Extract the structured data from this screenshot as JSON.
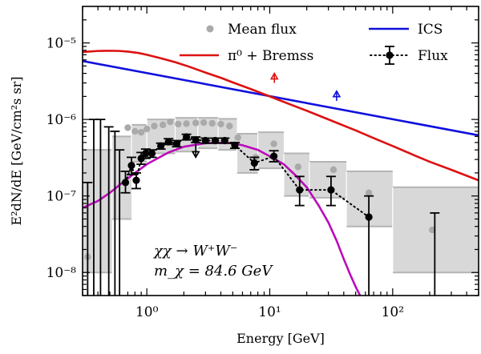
{
  "chart_data": {
    "type": "line",
    "xlabel": "Energy [GeV]",
    "ylabel": "E²dN/dE [GeV/cm²s sr]",
    "xscale": "log",
    "yscale": "log",
    "xlim": [
      0.3,
      500
    ],
    "ylim": [
      5e-09,
      3e-05
    ],
    "x_tick_labels": [
      "10⁰",
      "10¹",
      "10²"
    ],
    "x_tick_values": [
      1,
      10,
      100
    ],
    "y_tick_labels": [
      "10⁻⁸",
      "10⁻⁷",
      "10⁻⁶",
      "10⁻⁵"
    ],
    "y_tick_values": [
      1e-08,
      1e-07,
      1e-06,
      1e-05
    ],
    "legend_position": "top",
    "legend": [
      {
        "label": "Mean flux",
        "style": "gray-dot"
      },
      {
        "label": "ICS",
        "style": "blue-line"
      },
      {
        "label": "π⁰ + Bremss",
        "style": "red-line"
      },
      {
        "label": "Flux",
        "style": "black-errorbar-dotted"
      }
    ],
    "annotations": [
      "χχ → W⁺W⁻",
      "m_χ = 84.6 GeV"
    ],
    "colors": {
      "ics": "#1010dd",
      "pion": "#dd1111",
      "dm": "#bb0bbb",
      "mean": "#aaaaaa",
      "flux": "#000000",
      "band_fill": "#d8d8d8",
      "band_edge": "#b4b4b4"
    },
    "series": [
      {
        "name": "ICS",
        "x": [
          0.3,
          500
        ],
        "y": [
          5.8e-06,
          6.2e-07
        ]
      },
      {
        "name": "π⁰ + Bremss",
        "x": [
          0.3,
          0.4,
          0.5,
          0.6,
          0.7,
          0.85,
          1,
          1.3,
          1.7,
          2.2,
          3,
          4,
          5,
          7,
          10,
          15,
          20,
          30,
          50,
          70,
          100,
          150,
          200,
          300,
          500
        ],
        "y": [
          7.6e-06,
          7.85e-06,
          7.9e-06,
          7.85e-06,
          7.7e-06,
          7.4e-06,
          7e-06,
          6.3e-06,
          5.6e-06,
          4.9e-06,
          4.1e-06,
          3.5e-06,
          3.05e-06,
          2.5e-06,
          2e-06,
          1.55e-06,
          1.3e-06,
          1e-06,
          7.2e-07,
          5.7e-07,
          4.5e-07,
          3.4e-07,
          2.8e-07,
          2.2e-07,
          1.6e-07
        ]
      },
      {
        "name": "χχ → W⁺W⁻",
        "x": [
          0.3,
          0.4,
          0.5,
          0.7,
          1,
          1.5,
          2,
          3,
          4,
          5,
          6,
          8,
          10,
          13,
          16,
          20,
          25,
          30,
          35,
          40,
          45,
          50,
          55
        ],
        "y": [
          7e-08,
          8.6e-08,
          1.1e-07,
          1.7e-07,
          2.6e-07,
          3.7e-07,
          4.4e-07,
          4.9e-07,
          4.95e-07,
          4.9e-07,
          4.6e-07,
          4e-07,
          3.3e-07,
          2.6e-07,
          1.9e-07,
          1.3e-07,
          7.5e-08,
          4.5e-08,
          2.6e-08,
          1.5e-08,
          9.5e-09,
          6.5e-09,
          4.8e-09
        ]
      }
    ],
    "flux_points": [
      {
        "x": 0.67,
        "y": 1.5e-07,
        "lo": 1.1e-07,
        "hi": 2.1e-07
      },
      {
        "x": 0.75,
        "y": 2.5e-07,
        "lo": 1.9e-07,
        "hi": 3.2e-07
      },
      {
        "x": 0.82,
        "y": 1.6e-07,
        "lo": 1.25e-07,
        "hi": 2e-07
      },
      {
        "x": 0.9,
        "y": 3.1e-07,
        "lo": 2.6e-07,
        "hi": 3.7e-07
      },
      {
        "x": 0.98,
        "y": 3.6e-07,
        "lo": 3.1e-07,
        "hi": 4.1e-07
      },
      {
        "x": 1.1,
        "y": 3.6e-07,
        "lo": 3.2e-07,
        "hi": 4e-07
      },
      {
        "x": 1.3,
        "y": 4.5e-07,
        "lo": 4.1e-07,
        "hi": 4.9e-07
      },
      {
        "x": 1.5,
        "y": 5.1e-07,
        "lo": 4.7e-07,
        "hi": 5.6e-07
      },
      {
        "x": 1.75,
        "y": 4.8e-07,
        "lo": 4.4e-07,
        "hi": 5.3e-07
      },
      {
        "x": 2.1,
        "y": 5.9e-07,
        "lo": 5.4e-07,
        "hi": 6.4e-07
      },
      {
        "x": 2.5,
        "y": 5.4e-07,
        "lo": 5e-07,
        "hi": 5.9e-07
      },
      {
        "x": 3.0,
        "y": 5.3e-07,
        "lo": 4.9e-07,
        "hi": 5.7e-07
      },
      {
        "x": 3.6,
        "y": 5.3e-07,
        "lo": 4.9e-07,
        "hi": 5.7e-07
      },
      {
        "x": 4.3,
        "y": 5.3e-07,
        "lo": 4.9e-07,
        "hi": 5.7e-07
      },
      {
        "x": 5.2,
        "y": 4.6e-07,
        "lo": 4.2e-07,
        "hi": 5e-07
      },
      {
        "x": 7.5,
        "y": 2.7e-07,
        "lo": 2.2e-07,
        "hi": 3.2e-07
      },
      {
        "x": 10.8,
        "y": 3.3e-07,
        "lo": 2.8e-07,
        "hi": 3.9e-07
      },
      {
        "x": 17.5,
        "y": 1.2e-07,
        "lo": 7.5e-08,
        "hi": 1.8e-07
      },
      {
        "x": 31.5,
        "y": 1.2e-07,
        "lo": 7.5e-08,
        "hi": 1.8e-07
      },
      {
        "x": 64.0,
        "y": 5.3e-08,
        "lo": 3e-09,
        "hi": 1e-07
      }
    ],
    "upper_limit_bars": [
      {
        "x": 0.33,
        "lo": 3e-09,
        "hi": 1.5e-07
      },
      {
        "x": 0.37,
        "lo": 3e-09,
        "hi": 1e-06
      },
      {
        "x": 0.42,
        "lo": 3e-09,
        "hi": 1e-06
      },
      {
        "x": 0.49,
        "lo": 3e-09,
        "hi": 8e-07
      },
      {
        "x": 0.55,
        "lo": 3e-09,
        "hi": 7e-07
      },
      {
        "x": 0.6,
        "lo": 3e-09,
        "hi": 4e-07
      },
      {
        "x": 220,
        "lo": 3e-09,
        "hi": 6e-08
      }
    ],
    "mean_flux": {
      "x": [
        0.33,
        0.7,
        0.8,
        0.9,
        1.0,
        1.15,
        1.35,
        1.55,
        1.8,
        2.1,
        2.5,
        2.9,
        3.4,
        4.0,
        4.7,
        5.5,
        7.7,
        10.8,
        17.0,
        33.0,
        64.0,
        210.0
      ],
      "y": [
        1.6e-08,
        7.8e-07,
        7e-07,
        6.8e-07,
        7.5e-07,
        8.2e-07,
        8.5e-07,
        9.3e-07,
        8.7e-07,
        8.8e-07,
        9e-07,
        9.1e-07,
        8.9e-07,
        8.7e-07,
        8.2e-07,
        5.8e-07,
        3.2e-07,
        4.8e-07,
        2.4e-07,
        2.2e-07,
        1.1e-07,
        3.6e-08
      ]
    },
    "mean_bands": [
      {
        "x0": 0.3,
        "x1": 0.52,
        "y0": 1e-08,
        "y1": 4e-07
      },
      {
        "x0": 0.52,
        "x1": 0.75,
        "y0": 5e-08,
        "y1": 6e-07
      },
      {
        "x0": 0.75,
        "x1": 1.0,
        "y0": 2.8e-07,
        "y1": 8.5e-07
      },
      {
        "x0": 1.0,
        "x1": 1.7,
        "y0": 3.6e-07,
        "y1": 1e-06
      },
      {
        "x0": 1.7,
        "x1": 2.6,
        "y0": 3.8e-07,
        "y1": 1.05e-06
      },
      {
        "x0": 2.6,
        "x1": 3.8,
        "y0": 4.2e-07,
        "y1": 1.05e-06
      },
      {
        "x0": 3.8,
        "x1": 5.4,
        "y0": 4e-07,
        "y1": 1.02e-06
      },
      {
        "x0": 5.4,
        "x1": 8.0,
        "y0": 2e-07,
        "y1": 6.5e-07
      },
      {
        "x0": 8.0,
        "x1": 13.0,
        "y0": 2.3e-07,
        "y1": 6.8e-07
      },
      {
        "x0": 13.0,
        "x1": 21.0,
        "y0": 1e-07,
        "y1": 3.6e-07
      },
      {
        "x0": 21.0,
        "x1": 42.0,
        "y0": 9.5e-08,
        "y1": 2.8e-07
      },
      {
        "x0": 42.0,
        "x1": 100.0,
        "y0": 4e-08,
        "y1": 2.1e-07
      },
      {
        "x0": 100.0,
        "x1": 500.0,
        "y0": 1e-08,
        "y1": 1.3e-07
      }
    ],
    "upper_arrows": [
      {
        "x": 2.5,
        "y_top": 4.8e-07,
        "y_tip": 3.2e-07,
        "color": "#000000",
        "direction": "down"
      },
      {
        "x": 10.9,
        "y_top": 3e-06,
        "y_tip": 4e-06,
        "color": "#dd1111",
        "direction": "up"
      },
      {
        "x": 35.0,
        "y_top": 1.75e-06,
        "y_tip": 2.35e-06,
        "color": "#1010dd",
        "direction": "up"
      }
    ]
  }
}
